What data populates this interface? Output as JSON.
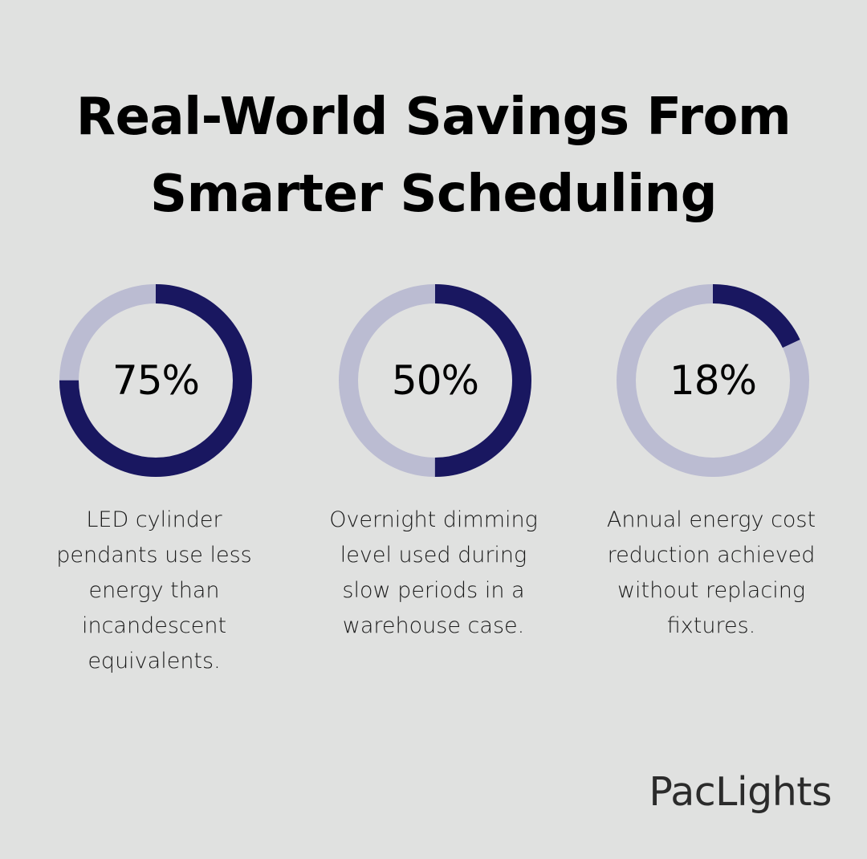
{
  "title": {
    "line1": "Real-World Savings From",
    "line2": "Smarter Scheduling"
  },
  "colors": {
    "background": "#e0e1e0",
    "filled": "#191760",
    "track": "#bbbcd2",
    "text": "#000000"
  },
  "chart_data": {
    "type": "pie",
    "variant": "donut",
    "items": [
      {
        "value": 75,
        "label": "75%",
        "caption": "LED cylinder pendants use less energy than incandescent equivalents."
      },
      {
        "value": 50,
        "label": "50%",
        "caption": "Overnight dimming level used during slow periods in a warehouse case."
      },
      {
        "value": 18,
        "label": "18%",
        "caption": "Annual energy cost reduction achieved without replacing fixtures."
      }
    ]
  },
  "logo": "PacLights"
}
